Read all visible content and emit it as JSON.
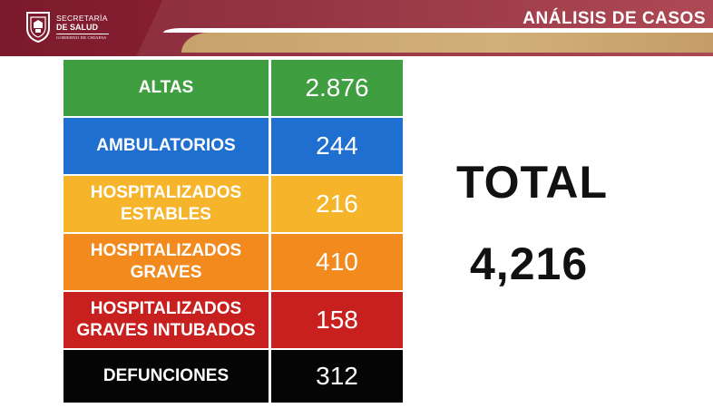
{
  "header": {
    "brand_line1": "SECRETARÍA",
    "brand_line2": "DE SALUD",
    "brand_line3": "GOBIERNO DE CHIAPAS",
    "title": "ANÁLISIS DE CASOS",
    "colors": {
      "primary": "#8c2233",
      "gold": "#c9a46f"
    }
  },
  "table": {
    "rows": [
      {
        "label": "ALTAS",
        "value": "2.876",
        "color": "#3f9e3f"
      },
      {
        "label": "AMBULATORIOS",
        "value": "244",
        "color": "#1f6fd0"
      },
      {
        "label": "HOSPITALIZADOS ESTABLES",
        "value": "216",
        "color": "#f6b42a"
      },
      {
        "label": "HOSPITALIZADOS GRAVES",
        "value": "410",
        "color": "#f28a1d"
      },
      {
        "label": "HOSPITALIZADOS GRAVES INTUBADOS",
        "value": "158",
        "color": "#c8201f"
      },
      {
        "label": "DEFUNCIONES",
        "value": "312",
        "color": "#050505"
      }
    ]
  },
  "total": {
    "label": "TOTAL",
    "value": "4,216"
  }
}
